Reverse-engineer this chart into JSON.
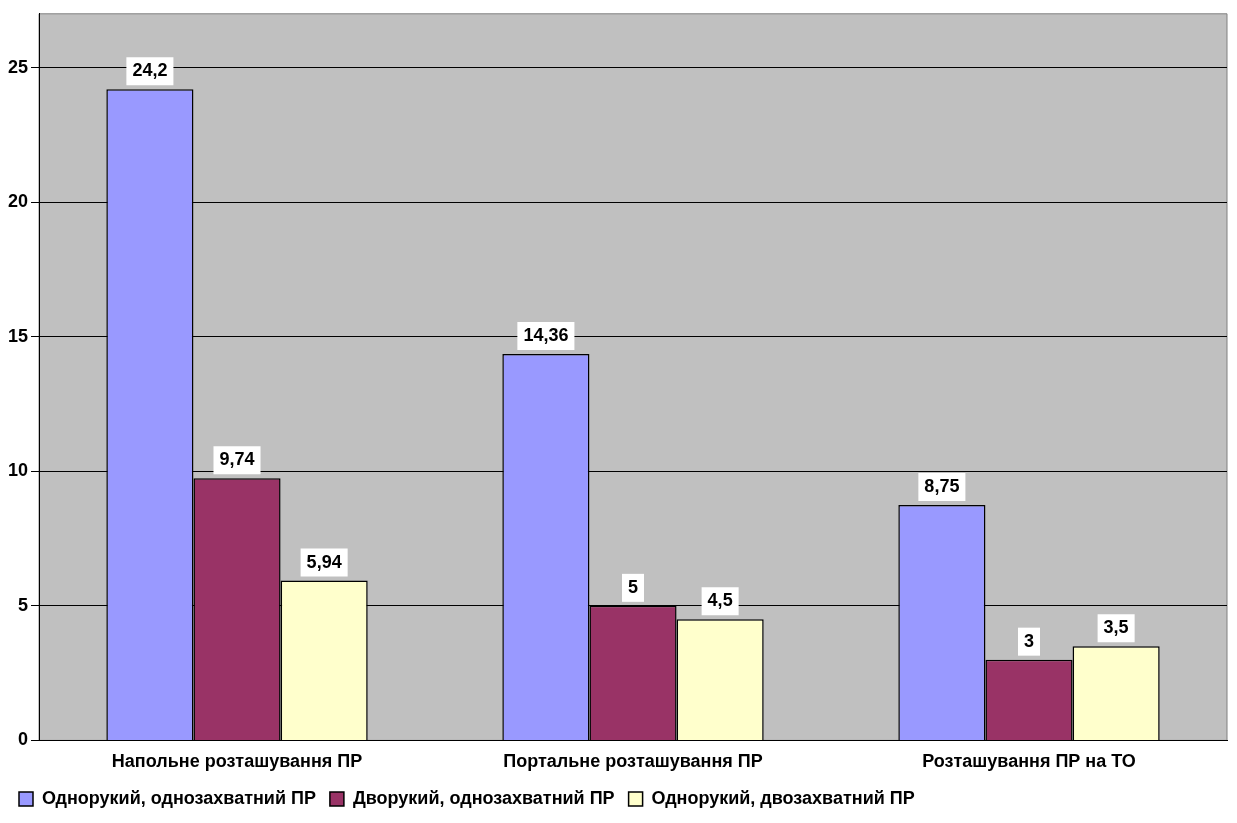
{
  "chart_data": {
    "type": "bar",
    "categories": [
      "Напольне розташування ПР",
      "Портальне розташування ПР",
      "Розташування ПР на ТО"
    ],
    "series": [
      {
        "name": "Однорукий, однозахватний ПР",
        "color": "#9999ff",
        "values": [
          24.2,
          14.36,
          8.75
        ],
        "value_labels": [
          "24,2",
          "14,36",
          "8,75"
        ]
      },
      {
        "name": "Дворукий, однозахватний ПР",
        "color": "#993366",
        "values": [
          9.74,
          5,
          3
        ],
        "value_labels": [
          "9,74",
          "5",
          "3"
        ]
      },
      {
        "name": "Однорукий, двозахватний ПР",
        "color": "#ffffcc",
        "values": [
          5.94,
          4.5,
          3.5
        ],
        "value_labels": [
          "5,94",
          "4,5",
          "3,5"
        ]
      }
    ],
    "ylim": [
      0,
      27
    ],
    "yticks": [
      0,
      5,
      10,
      15,
      20,
      25
    ],
    "grid": "y",
    "legend": "bottom"
  }
}
